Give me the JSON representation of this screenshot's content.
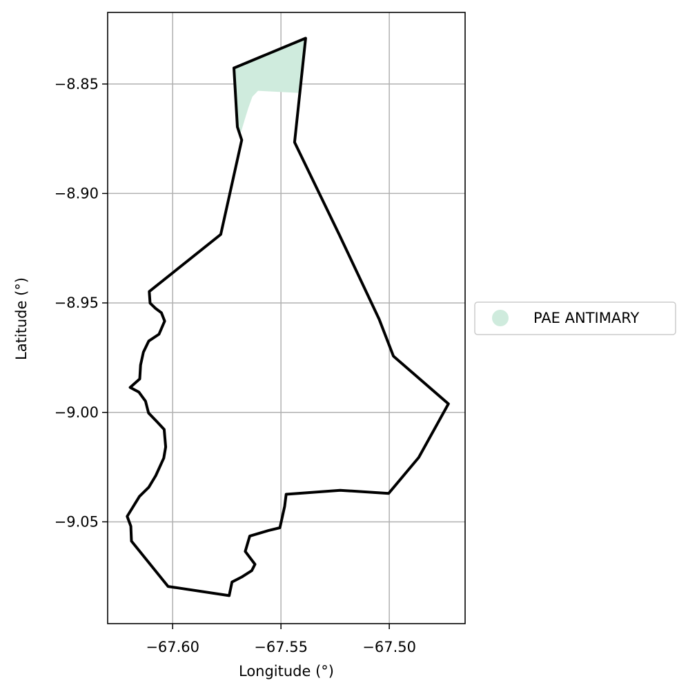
{
  "chart_data": {
    "type": "map",
    "xlabel": "Longitude (°)",
    "ylabel": "Latitude (°)",
    "xlim": [
      -67.63,
      -67.465
    ],
    "ylim": [
      -9.0965,
      -8.8173
    ],
    "x_ticks": [
      {
        "value": -67.6,
        "label": "−67.60"
      },
      {
        "value": -67.55,
        "label": "−67.55"
      },
      {
        "value": -67.5,
        "label": "−67.50"
      }
    ],
    "y_ticks": [
      {
        "value": -8.85,
        "label": "−8.85"
      },
      {
        "value": -8.9,
        "label": "−8.90"
      },
      {
        "value": -8.95,
        "label": "−8.95"
      },
      {
        "value": -9.0,
        "label": "−9.00"
      },
      {
        "value": -9.05,
        "label": "−9.05"
      }
    ],
    "grid": true,
    "legend_position": "center-right",
    "series": [
      {
        "name": "PAE ANTIMARY",
        "color": "#cfebdd",
        "polygon": [
          [
            -67.5717,
            -8.8427
          ],
          [
            -67.5386,
            -8.8291
          ],
          [
            -67.5411,
            -8.8541
          ],
          [
            -67.5606,
            -8.8531
          ],
          [
            -67.5632,
            -8.8558
          ],
          [
            -67.5651,
            -8.8611
          ],
          [
            -67.5667,
            -8.8662
          ],
          [
            -67.5688,
            -8.8732
          ],
          [
            -67.5701,
            -8.8696
          ],
          [
            -67.5717,
            -8.8427
          ]
        ]
      }
    ],
    "boundary": {
      "color": "#000000",
      "points": [
        [
          -67.5717,
          -8.8427
        ],
        [
          -67.5386,
          -8.8291
        ],
        [
          -67.5437,
          -8.8766
        ],
        [
          -67.5414,
          -8.8814
        ],
        [
          -67.5231,
          -8.9188
        ],
        [
          -67.5047,
          -8.9574
        ],
        [
          -67.4981,
          -8.9743
        ],
        [
          -67.4727,
          -8.9961
        ],
        [
          -67.4864,
          -9.0206
        ],
        [
          -67.5003,
          -9.037
        ],
        [
          -67.5227,
          -9.0356
        ],
        [
          -67.5476,
          -9.0374
        ],
        [
          -67.5483,
          -9.0429
        ],
        [
          -67.5505,
          -9.0527
        ],
        [
          -67.5558,
          -9.054
        ],
        [
          -67.5644,
          -9.0565
        ],
        [
          -67.5665,
          -9.0635
        ],
        [
          -67.562,
          -9.0694
        ],
        [
          -67.5635,
          -9.0723
        ],
        [
          -67.5681,
          -9.0752
        ],
        [
          -67.5726,
          -9.0775
        ],
        [
          -67.5739,
          -9.0837
        ],
        [
          -67.6021,
          -9.0795
        ],
        [
          -67.619,
          -9.0588
        ],
        [
          -67.6193,
          -9.052
        ],
        [
          -67.621,
          -9.0475
        ],
        [
          -67.6153,
          -9.0384
        ],
        [
          -67.611,
          -9.0342
        ],
        [
          -67.6078,
          -9.0289
        ],
        [
          -67.6041,
          -9.0209
        ],
        [
          -67.6032,
          -9.0158
        ],
        [
          -67.6039,
          -9.0078
        ],
        [
          -67.6073,
          -9.0042
        ],
        [
          -67.6111,
          -9.0003
        ],
        [
          -67.6125,
          -8.9949
        ],
        [
          -67.6156,
          -8.9907
        ],
        [
          -67.6196,
          -8.9886
        ],
        [
          -67.6152,
          -8.9847
        ],
        [
          -67.6148,
          -8.9784
        ],
        [
          -67.6135,
          -8.9725
        ],
        [
          -67.611,
          -8.9674
        ],
        [
          -67.6063,
          -8.9643
        ],
        [
          -67.6037,
          -8.9583
        ],
        [
          -67.6052,
          -8.9545
        ],
        [
          -67.6079,
          -8.9525
        ],
        [
          -67.6104,
          -8.9501
        ],
        [
          -67.6108,
          -8.9448
        ],
        [
          -67.5778,
          -8.9187
        ],
        [
          -67.5681,
          -8.8756
        ],
        [
          -67.5701,
          -8.8696
        ],
        [
          -67.5717,
          -8.8427
        ]
      ]
    },
    "legend": {
      "entries": [
        {
          "label": "PAE ANTIMARY",
          "color": "#cfebdd"
        }
      ]
    }
  }
}
